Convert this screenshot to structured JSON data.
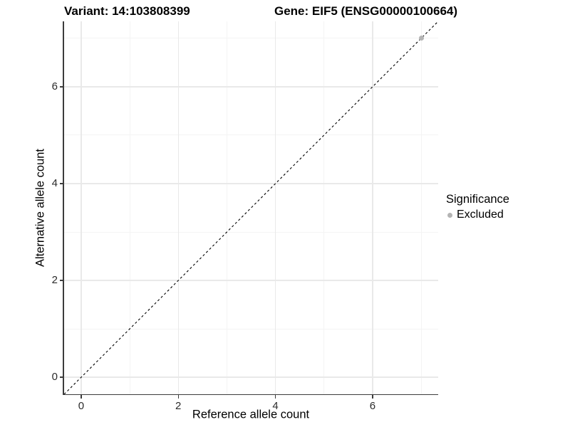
{
  "header": {
    "variant_title": "Variant: 14:103808399",
    "gene_title": "Gene: EIF5 (ENSG00000100664)"
  },
  "chart_data": {
    "type": "scatter",
    "title": "Variant: 14:103808399   Gene: EIF5 (ENSG00000100664)",
    "xlabel": "Reference allele count",
    "ylabel": "Alternative allele count",
    "xlim": [
      -0.35,
      7.35
    ],
    "ylim": [
      -0.35,
      7.35
    ],
    "x_major_ticks": [
      0,
      2,
      4,
      6
    ],
    "y_major_ticks": [
      0,
      2,
      4,
      6
    ],
    "x_minor_gridlines": [
      1,
      3,
      5,
      7
    ],
    "y_minor_gridlines": [
      1,
      3,
      5,
      7
    ],
    "grid": true,
    "reference_line": {
      "equation": "y = x",
      "style": "dashed",
      "color": "#000000",
      "from": [
        -0.35,
        -0.35
      ],
      "to": [
        7.35,
        7.35
      ]
    },
    "series": [
      {
        "name": "Excluded",
        "color": "#b4b4b4",
        "points": [
          [
            7,
            7
          ]
        ]
      }
    ],
    "legend": {
      "title": "Significance",
      "position": "right",
      "items": [
        {
          "label": "Excluded",
          "color": "#b4b4b4"
        }
      ]
    }
  },
  "colors": {
    "background": "#ffffff",
    "axis_line": "#3c3c3c",
    "point": "#b4b4b4",
    "reference_line": "#000000"
  }
}
